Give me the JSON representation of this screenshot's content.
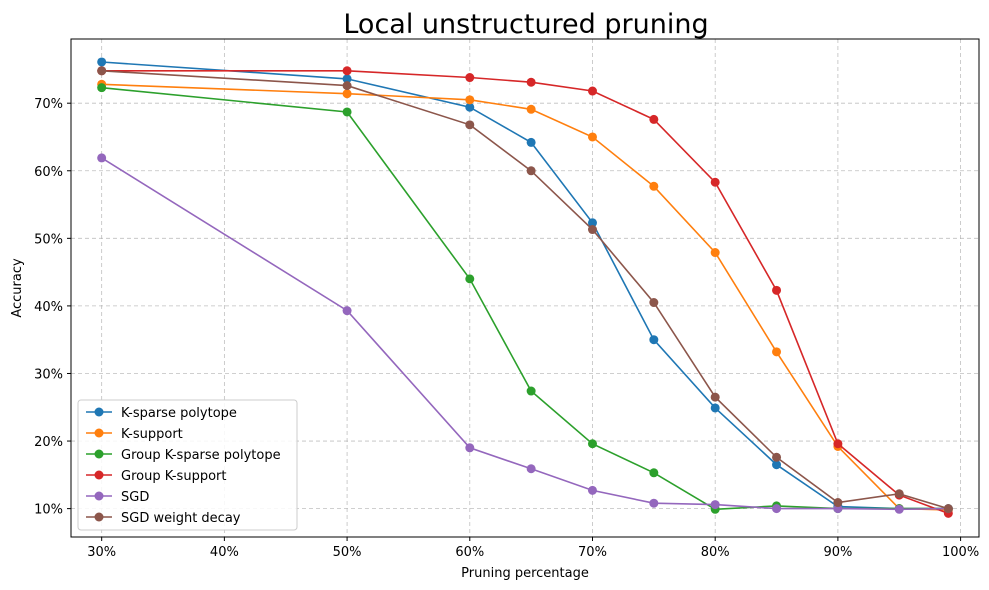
{
  "chart_data": {
    "type": "line",
    "title": "Local unstructured pruning",
    "xlabel": "Pruning percentage",
    "ylabel": "Accuracy",
    "xlim": [
      27.5,
      101.5
    ],
    "ylim": [
      5.8,
      79.5
    ],
    "xticks": [
      30,
      40,
      50,
      60,
      70,
      80,
      90,
      100
    ],
    "xtick_labels": [
      "30%",
      "40%",
      "50%",
      "60%",
      "70%",
      "80%",
      "90%",
      "100%"
    ],
    "yticks": [
      10,
      20,
      30,
      40,
      50,
      60,
      70
    ],
    "ytick_labels": [
      "10%",
      "20%",
      "30%",
      "40%",
      "50%",
      "60%",
      "70%"
    ],
    "grid": true,
    "legend_position": "lower-left",
    "x": [
      30,
      50,
      60,
      65,
      70,
      75,
      80,
      85,
      90,
      95,
      99
    ],
    "series": [
      {
        "name": "K-sparse polytope",
        "color": "#1f77b4",
        "values": [
          76.1,
          73.6,
          69.4,
          64.2,
          52.3,
          35.0,
          24.9,
          16.5,
          10.3,
          10.0,
          10.0
        ]
      },
      {
        "name": "K-support",
        "color": "#ff7f0e",
        "values": [
          72.8,
          71.4,
          70.5,
          69.1,
          65.0,
          57.7,
          47.9,
          33.2,
          19.2,
          10.0,
          9.8
        ]
      },
      {
        "name": "Group K-sparse polytope",
        "color": "#2ca02c",
        "values": [
          72.3,
          68.7,
          44.0,
          27.4,
          19.6,
          15.3,
          9.9,
          10.4,
          10.0,
          10.0,
          10.0
        ]
      },
      {
        "name": "Group K-support",
        "color": "#d62728",
        "values": [
          74.8,
          74.8,
          73.8,
          73.1,
          71.8,
          67.6,
          58.3,
          42.3,
          19.6,
          12.0,
          9.3
        ]
      },
      {
        "name": "SGD",
        "color": "#9467bd",
        "values": [
          61.9,
          39.3,
          19.0,
          15.9,
          12.7,
          10.8,
          10.6,
          10.0,
          10.0,
          9.9,
          10.0
        ]
      },
      {
        "name": "SGD weight decay",
        "color": "#8c564b",
        "values": [
          74.8,
          72.6,
          66.8,
          60.0,
          51.3,
          40.5,
          26.5,
          17.6,
          10.9,
          12.2,
          10.0
        ]
      }
    ]
  }
}
